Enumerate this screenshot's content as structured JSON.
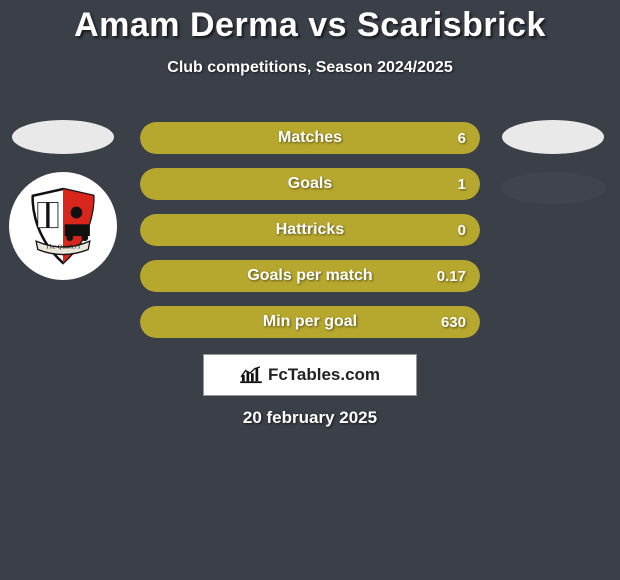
{
  "header": {
    "title": "Amam Derma vs Scarisbrick",
    "subtitle": "Club competitions, Season 2024/2025"
  },
  "colors": {
    "bar_fill": "#b6a72e",
    "bar_bg": "#3a3f48",
    "page_bg": "#3a3f48",
    "oval": "#e9e9e9",
    "blank_oval": "#3f444d",
    "brand_bg": "#ffffff",
    "brand_border": "#949494"
  },
  "bars": [
    {
      "label": "Matches",
      "left": "",
      "right": "6",
      "left_pct": 0,
      "right_pct": 100
    },
    {
      "label": "Goals",
      "left": "",
      "right": "1",
      "left_pct": 0,
      "right_pct": 100
    },
    {
      "label": "Hattricks",
      "left": "",
      "right": "0",
      "left_pct": 0,
      "right_pct": 100
    },
    {
      "label": "Goals per match",
      "left": "",
      "right": "0.17",
      "left_pct": 0,
      "right_pct": 100
    },
    {
      "label": "Min per goal",
      "left": "",
      "right": "630",
      "left_pct": 0,
      "right_pct": 100
    }
  ],
  "brand": {
    "text": "FcTables.com"
  },
  "date": "20 february 2025",
  "crest": {
    "ribbon_text": "The Quakers"
  }
}
